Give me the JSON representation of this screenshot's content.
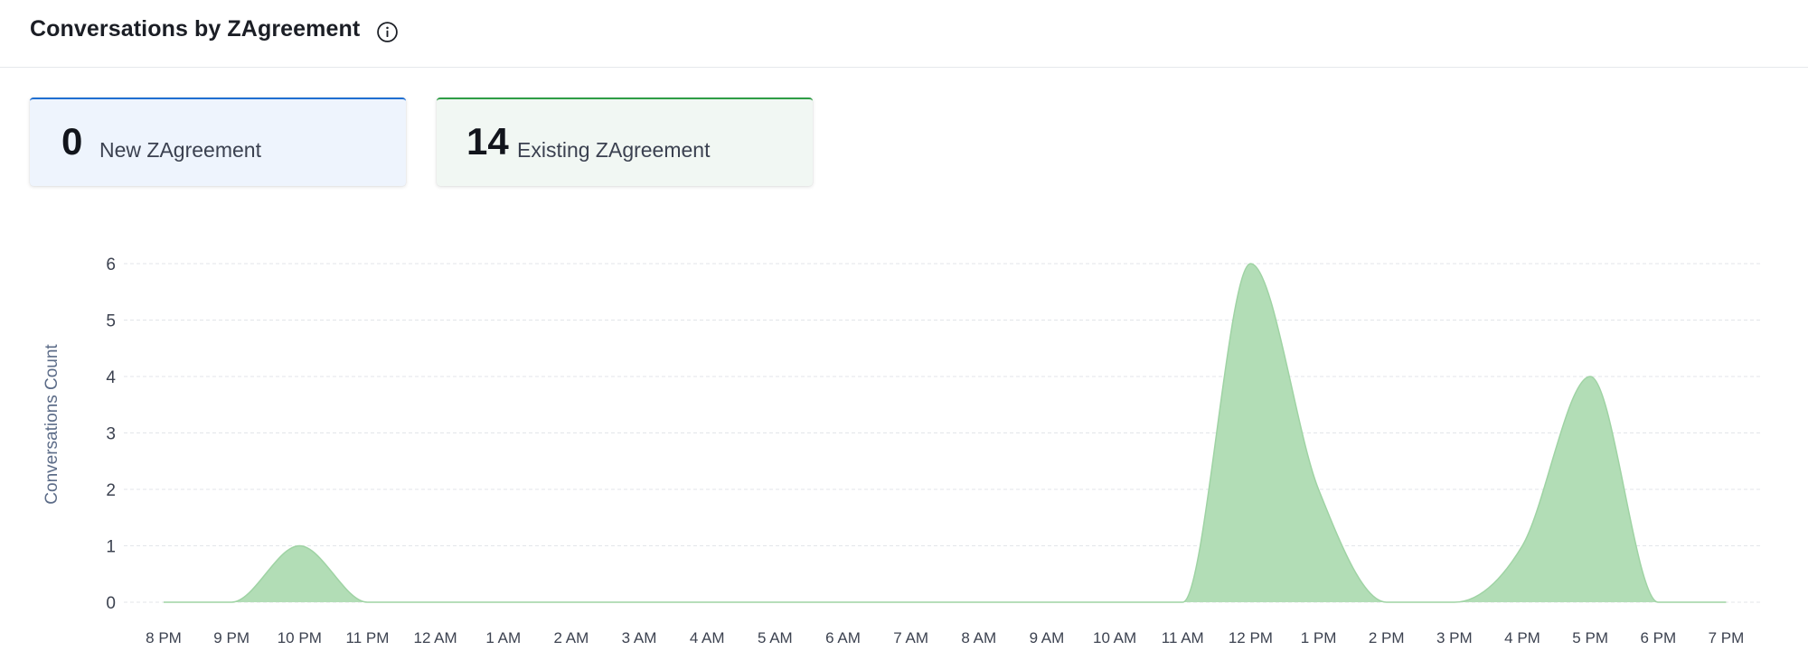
{
  "header": {
    "title": "Conversations by ZAgreement"
  },
  "cards": [
    {
      "value": "0",
      "label": "New ZAgreement",
      "accent": "#1f6fd2"
    },
    {
      "value": "14",
      "label": "Existing ZAgreement",
      "accent": "#2e9e45"
    }
  ],
  "chart_data": {
    "type": "area",
    "ylabel": "Conversations Count",
    "xlabel": "",
    "categories": [
      "8 PM",
      "9 PM",
      "10 PM",
      "11 PM",
      "12 AM",
      "1 AM",
      "2 AM",
      "3 AM",
      "4 AM",
      "5 AM",
      "6 AM",
      "7 AM",
      "8 AM",
      "9 AM",
      "10 AM",
      "11 AM",
      "12 PM",
      "1 PM",
      "2 PM",
      "3 PM",
      "4 PM",
      "5 PM",
      "6 PM",
      "7 PM"
    ],
    "values": [
      0,
      0,
      1,
      0,
      0,
      0,
      0,
      0,
      0,
      0,
      0,
      0,
      0,
      0,
      0,
      0,
      6,
      2,
      0,
      0,
      1,
      4,
      0,
      0
    ],
    "yticks": [
      "0",
      "1",
      "2",
      "3",
      "4",
      "5",
      "6"
    ],
    "ylim": [
      0,
      6
    ],
    "grid": true,
    "fill_color": "#b2ddb6",
    "stroke_color": "#9fd3a4"
  }
}
